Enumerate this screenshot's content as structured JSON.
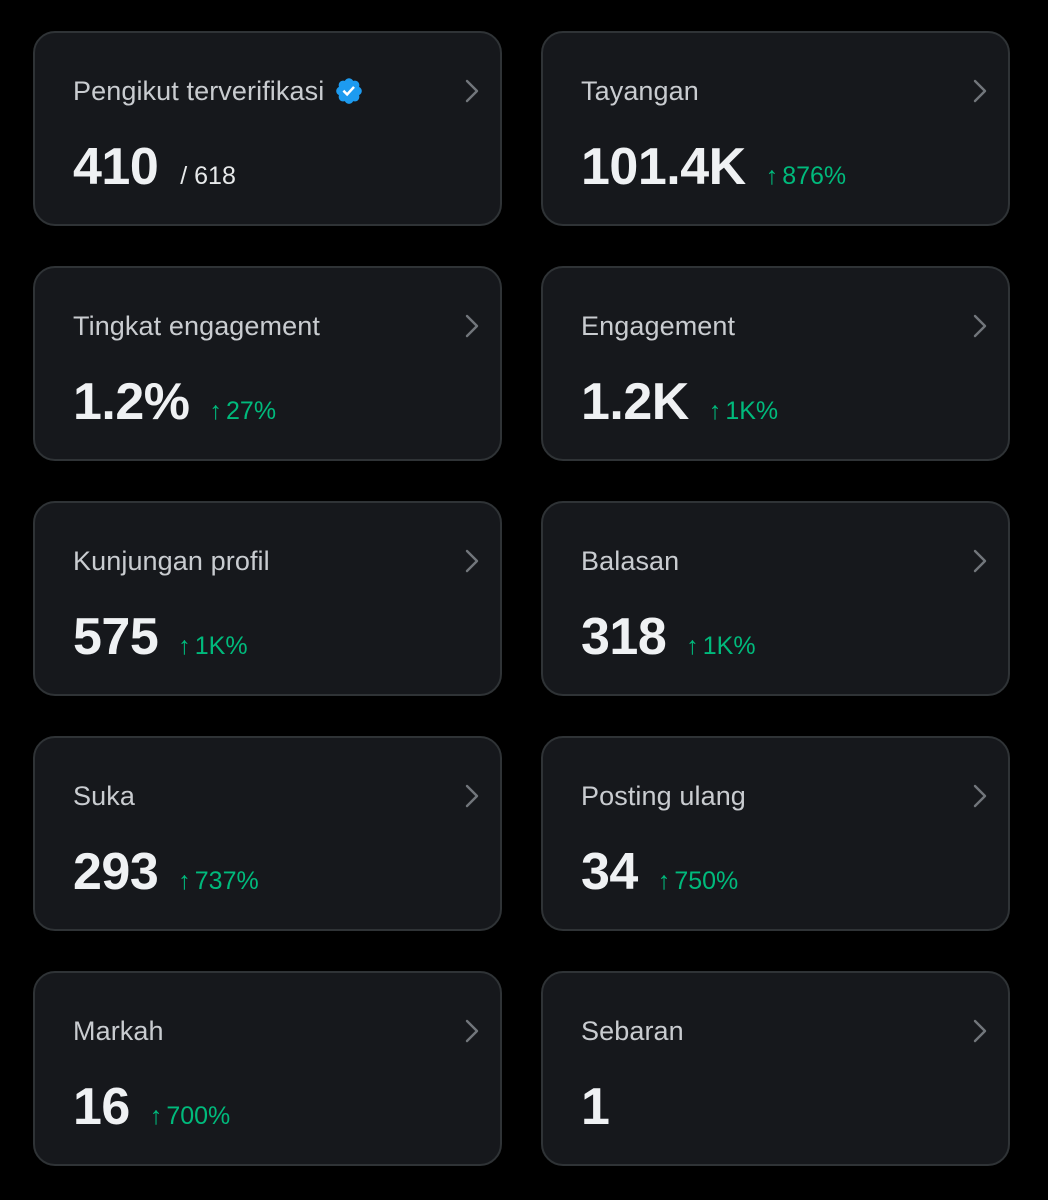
{
  "colors": {
    "background": "#000000",
    "card": "#16181c",
    "card_border": "#2f3336",
    "positive": "#00ba7c",
    "verified_badge": "#1d9bf0"
  },
  "cards": [
    {
      "label": "Pengikut terverifikasi",
      "value": "410",
      "sub": "/ 618",
      "change": "",
      "verified": true
    },
    {
      "label": "Tayangan",
      "value": "101.4K",
      "sub": "",
      "change": "876%"
    },
    {
      "label": "Tingkat engagement",
      "value": "1.2%",
      "sub": "",
      "change": "27%"
    },
    {
      "label": "Engagement",
      "value": "1.2K",
      "sub": "",
      "change": "1K%"
    },
    {
      "label": "Kunjungan profil",
      "value": "575",
      "sub": "",
      "change": "1K%"
    },
    {
      "label": "Balasan",
      "value": "318",
      "sub": "",
      "change": "1K%"
    },
    {
      "label": "Suka",
      "value": "293",
      "sub": "",
      "change": "737%"
    },
    {
      "label": "Posting ulang",
      "value": "34",
      "sub": "",
      "change": "750%"
    },
    {
      "label": "Markah",
      "value": "16",
      "sub": "",
      "change": "700%"
    },
    {
      "label": "Sebaran",
      "value": "1",
      "sub": "",
      "change": ""
    }
  ],
  "icons": {
    "chevron": "chevron-right-icon",
    "verified": "verified-badge-icon",
    "arrow": "arrow-up-icon"
  }
}
